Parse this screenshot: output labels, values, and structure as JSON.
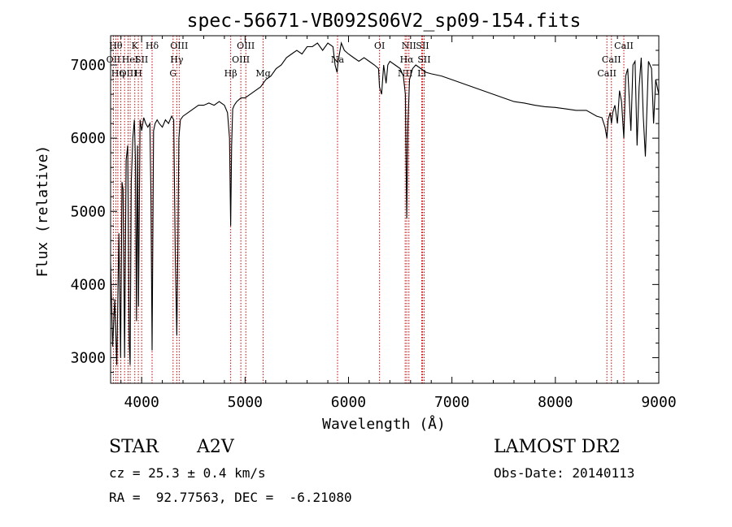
{
  "chart_data": {
    "type": "line",
    "title": "spec-56671-VB092S06V2_sp09-154.fits",
    "xlabel": "Wavelength (Å)",
    "ylabel": "Flux (relative)",
    "xlim": [
      3700,
      9000
    ],
    "ylim": [
      2650,
      7400
    ],
    "xticks": [
      4000,
      5000,
      6000,
      7000,
      8000,
      9000
    ],
    "yticks": [
      3000,
      4000,
      5000,
      6000,
      7000
    ],
    "line_color": "#000000",
    "marker_color": "#cc0000",
    "series": [
      {
        "x": [
          3700,
          3720,
          3740,
          3760,
          3780,
          3797,
          3810,
          3820,
          3835,
          3850,
          3865,
          3880,
          3889,
          3900,
          3915,
          3930,
          3940,
          3950,
          3960,
          3970,
          3985,
          4000,
          4020,
          4040,
          4060,
          4080,
          4090,
          4101,
          4115,
          4130,
          4150,
          4170,
          4200,
          4230,
          4260,
          4290,
          4310,
          4325,
          4340,
          4350,
          4360,
          4375,
          4400,
          4450,
          4500,
          4550,
          4600,
          4650,
          4700,
          4750,
          4800,
          4830,
          4850,
          4861,
          4870,
          4880,
          4895,
          4920,
          4960,
          5000,
          5050,
          5100,
          5150,
          5200,
          5250,
          5300,
          5350,
          5400,
          5450,
          5500,
          5550,
          5600,
          5650,
          5700,
          5750,
          5800,
          5850,
          5870,
          5889,
          5900,
          5930,
          5960,
          6000,
          6050,
          6100,
          6150,
          6200,
          6250,
          6290,
          6300,
          6320,
          6340,
          6363,
          6380,
          6400,
          6450,
          6500,
          6530,
          6550,
          6563,
          6575,
          6590,
          6620,
          6650,
          6700,
          6750,
          6800,
          6900,
          7000,
          7100,
          7200,
          7300,
          7400,
          7500,
          7600,
          7700,
          7800,
          7900,
          8000,
          8100,
          8200,
          8300,
          8400,
          8450,
          8480,
          8498,
          8510,
          8530,
          8542,
          8555,
          8575,
          8600,
          8620,
          8640,
          8662,
          8680,
          8700,
          8730,
          8750,
          8770,
          8790,
          8810,
          8830,
          8850,
          8870,
          8900,
          8930,
          8950,
          8970,
          9000
        ],
        "y": [
          4300,
          3150,
          3800,
          2900,
          4700,
          3000,
          5400,
          5300,
          3000,
          5700,
          5900,
          3200,
          2900,
          5400,
          6000,
          6250,
          5700,
          3500,
          5900,
          3700,
          6250,
          6100,
          6280,
          6200,
          6150,
          6200,
          5200,
          3100,
          6100,
          6200,
          6250,
          6200,
          6150,
          6250,
          6200,
          6300,
          6250,
          4400,
          3300,
          4500,
          6000,
          6250,
          6300,
          6350,
          6400,
          6450,
          6450,
          6480,
          6450,
          6500,
          6450,
          6350,
          6000,
          4800,
          5900,
          6400,
          6450,
          6500,
          6550,
          6550,
          6600,
          6650,
          6700,
          6800,
          6850,
          6950,
          7000,
          7100,
          7150,
          7200,
          7150,
          7250,
          7250,
          7300,
          7200,
          7300,
          7250,
          7000,
          6900,
          7050,
          7300,
          7200,
          7150,
          7100,
          7050,
          7100,
          7050,
          7000,
          6950,
          6700,
          6600,
          7000,
          6750,
          7000,
          7050,
          7000,
          6950,
          6850,
          6600,
          4900,
          6200,
          6800,
          6950,
          7000,
          6950,
          6900,
          6880,
          6850,
          6800,
          6750,
          6700,
          6650,
          6600,
          6550,
          6500,
          6480,
          6450,
          6430,
          6420,
          6400,
          6380,
          6380,
          6300,
          6280,
          6150,
          6000,
          6250,
          6350,
          6200,
          6350,
          6450,
          6200,
          6650,
          6500,
          6000,
          6850,
          6950,
          6100,
          7000,
          7050,
          5900,
          6700,
          7100,
          6300,
          5750,
          7050,
          6950,
          6200,
          6800,
          6600
        ]
      }
    ],
    "lines": [
      {
        "x": 3727,
        "label": "OII",
        "row": 1
      },
      {
        "x": 3750,
        "label": "Hθ",
        "row": 0
      },
      {
        "x": 3770,
        "label": "Hη",
        "row": 2
      },
      {
        "x": 3798,
        "label": "",
        "row": 3
      },
      {
        "x": 3835,
        "label": "",
        "row": 3
      },
      {
        "x": 3869,
        "label": "OIII",
        "row": 2
      },
      {
        "x": 3889,
        "label": "HeI",
        "row": 1
      },
      {
        "x": 3934,
        "label": "K",
        "row": 0
      },
      {
        "x": 3968,
        "label": "H",
        "row": 2
      },
      {
        "x": 4000,
        "label": "SII",
        "row": 1
      },
      {
        "x": 4101,
        "label": "Hδ",
        "row": 0
      },
      {
        "x": 4304,
        "label": "G",
        "row": 2
      },
      {
        "x": 4340,
        "label": "Hγ",
        "row": 1
      },
      {
        "x": 4363,
        "label": "OIII",
        "row": 0
      },
      {
        "x": 4861,
        "label": "Hβ",
        "row": 2
      },
      {
        "x": 4959,
        "label": "OIII",
        "row": 1
      },
      {
        "x": 5007,
        "label": "OIII",
        "row": 0
      },
      {
        "x": 5175,
        "label": "Mg",
        "row": 2
      },
      {
        "x": 5894,
        "label": "Na",
        "row": 1
      },
      {
        "x": 6300,
        "label": "OI",
        "row": 0
      },
      {
        "x": 6548,
        "label": "NII",
        "row": 2
      },
      {
        "x": 6563,
        "label": "Hα",
        "row": 1
      },
      {
        "x": 6584,
        "label": "NII",
        "row": 0
      },
      {
        "x": 6716,
        "label": "SII",
        "row": 0
      },
      {
        "x": 6731,
        "label": "SII",
        "row": 1
      },
      {
        "x": 6708,
        "label": "Li",
        "row": 2
      },
      {
        "x": 8498,
        "label": "CaII",
        "row": 2
      },
      {
        "x": 8542,
        "label": "CaII",
        "row": 1
      },
      {
        "x": 8662,
        "label": "CaII",
        "row": 0
      }
    ]
  },
  "info": {
    "class_label": "STAR",
    "subclass": "A2V",
    "cz": "cz = 25.3 ± 0.4 km/s",
    "radec": "RA =  92.77563, DEC =  -6.21080",
    "survey": "LAMOST DR2",
    "obs_date": "Obs-Date: 20140113"
  }
}
